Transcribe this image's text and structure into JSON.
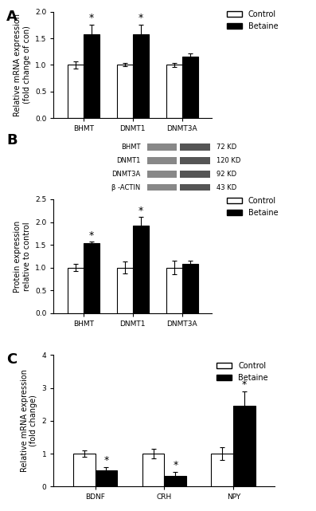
{
  "chart_data": [
    {
      "type": "bar",
      "panel": "A",
      "y_label": "Relative mRNA expression\n(fold change of con)",
      "categories": [
        "BHMT",
        "DNMT1",
        "DNMT3A"
      ],
      "series": [
        {
          "name": "Control",
          "color": "#ffffff",
          "values": [
            1.0,
            1.0,
            1.0
          ],
          "errors": [
            0.07,
            0.03,
            0.04
          ]
        },
        {
          "name": "Betaine",
          "color": "#000000",
          "values": [
            1.58,
            1.58,
            1.15
          ],
          "errors": [
            0.18,
            0.18,
            0.07
          ]
        }
      ],
      "annotations": [
        {
          "category": "BHMT",
          "series": "Betaine",
          "text": "*"
        },
        {
          "category": "DNMT1",
          "series": "Betaine",
          "text": "*"
        }
      ],
      "ylim": [
        0,
        2.0
      ],
      "yticks": [
        {
          "value": 0,
          "label": "0.0"
        },
        {
          "value": 0.5,
          "label": "0.5"
        },
        {
          "value": 1.0,
          "label": "1.0"
        },
        {
          "value": 1.5,
          "label": "1.5"
        },
        {
          "value": 2.0,
          "label": "2.0"
        }
      ],
      "grid": false,
      "legend": "right"
    },
    {
      "type": "bar",
      "panel": "B",
      "y_label": "Protein expression\nrelative to control",
      "categories": [
        "BHMT",
        "DNMT1",
        "DNMT3A"
      ],
      "series": [
        {
          "name": "Control",
          "color": "#ffffff",
          "values": [
            1.0,
            1.0,
            1.0
          ],
          "errors": [
            0.08,
            0.13,
            0.15
          ]
        },
        {
          "name": "Betaine",
          "color": "#000000",
          "values": [
            1.53,
            1.93,
            1.08
          ],
          "errors": [
            0.04,
            0.18,
            0.08
          ]
        }
      ],
      "annotations": [
        {
          "category": "BHMT",
          "series": "Betaine",
          "text": "*"
        },
        {
          "category": "DNMT1",
          "series": "Betaine",
          "text": "*"
        }
      ],
      "blot": [
        {
          "protein": "BHMT",
          "size": "72 KD"
        },
        {
          "protein": "DNMT1",
          "size": "120 KD"
        },
        {
          "protein": "DNMT3A",
          "size": "92 KD"
        },
        {
          "protein": "β -ACTIN",
          "size": "43 KD"
        }
      ],
      "ylim": [
        0,
        2.5
      ],
      "yticks": [
        {
          "value": 0,
          "label": "0.0"
        },
        {
          "value": 0.5,
          "label": "0.5"
        },
        {
          "value": 1.0,
          "label": "1.0"
        },
        {
          "value": 1.5,
          "label": "1.5"
        },
        {
          "value": 2.0,
          "label": "2.0"
        },
        {
          "value": 2.5,
          "label": "2.5"
        }
      ],
      "grid": false,
      "legend": "right"
    },
    {
      "type": "bar",
      "panel": "C",
      "y_label": "Relative mRNA expression\n(fold change)",
      "categories": [
        "BDNF",
        "CRH",
        "NPY"
      ],
      "series": [
        {
          "name": "Control",
          "color": "#ffffff",
          "values": [
            1.0,
            1.0,
            1.0
          ],
          "errors": [
            0.1,
            0.15,
            0.2
          ]
        },
        {
          "name": "Betaine",
          "color": "#000000",
          "values": [
            0.48,
            0.32,
            2.45
          ],
          "errors": [
            0.12,
            0.12,
            0.45
          ]
        }
      ],
      "annotations": [
        {
          "category": "BDNF",
          "series": "Betaine",
          "text": "*"
        },
        {
          "category": "CRH",
          "series": "Betaine",
          "text": "*"
        },
        {
          "category": "NPY",
          "series": "Betaine",
          "text": "*"
        }
      ],
      "ylim": [
        0,
        4
      ],
      "yticks": [
        0,
        1,
        2,
        3,
        4
      ],
      "grid": false,
      "legend": "upper right"
    }
  ]
}
